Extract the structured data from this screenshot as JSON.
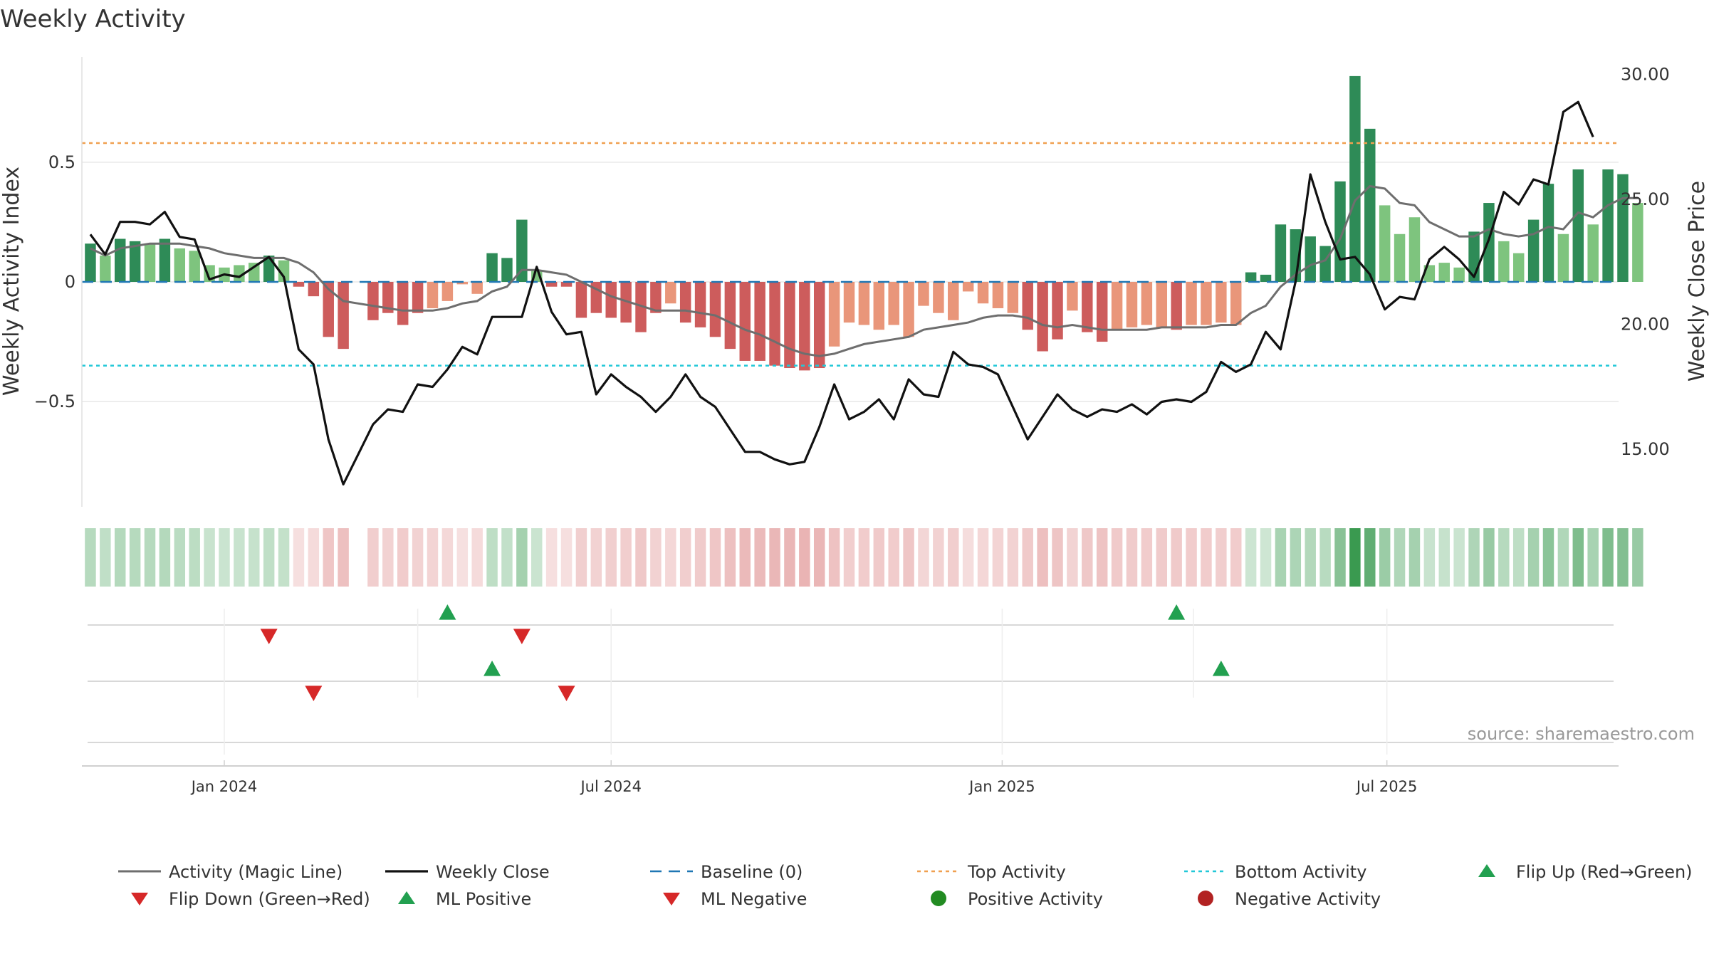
{
  "chart_data": {
    "type": "bar",
    "title": "Weekly Activity",
    "ylabel_left": "Weekly Activity Index",
    "ylabel_right": "Weekly Close Price",
    "source": "source: sharemaestro.com",
    "ylim_left": [
      -0.94,
      0.94
    ],
    "yticks_left": [
      {
        "v": 0.5,
        "label": "0.5"
      },
      {
        "v": 0,
        "label": "0"
      },
      {
        "v": -0.5,
        "label": "−0.5"
      }
    ],
    "ylim_right": [
      12.7,
      30.7
    ],
    "yticks_right": [
      {
        "v": 30,
        "label": "30.00"
      },
      {
        "v": 25,
        "label": "25.00"
      },
      {
        "v": 20,
        "label": "20.00"
      },
      {
        "v": 15,
        "label": "15.00"
      }
    ],
    "xlim": [
      "2023-10-26",
      "2025-10-18"
    ],
    "xticks": [
      {
        "date": "2024-01-01",
        "label": "Jan 2024"
      },
      {
        "date": "2024-07-01",
        "label": "Jul 2024"
      },
      {
        "date": "2025-01-01",
        "label": "Jan 2025"
      },
      {
        "date": "2025-07-01",
        "label": "Jul 2025"
      }
    ],
    "start_week": "2023-10-30",
    "activity": [
      0.16,
      0.11,
      0.18,
      0.17,
      0.16,
      0.18,
      0.14,
      0.13,
      0.07,
      0.06,
      0.07,
      0.08,
      0.11,
      0.09,
      -0.02,
      -0.06,
      -0.23,
      -0.28,
      null,
      -0.16,
      -0.13,
      -0.18,
      -0.13,
      -0.11,
      -0.08,
      -0.01,
      -0.05,
      0.12,
      0.1,
      0.26,
      0.05,
      -0.02,
      -0.02,
      -0.15,
      -0.13,
      -0.15,
      -0.17,
      -0.21,
      -0.13,
      -0.09,
      -0.17,
      -0.19,
      -0.23,
      -0.28,
      -0.33,
      -0.33,
      -0.35,
      -0.36,
      -0.37,
      -0.36,
      -0.27,
      -0.17,
      -0.18,
      -0.2,
      -0.18,
      -0.23,
      -0.1,
      -0.13,
      -0.16,
      -0.04,
      -0.09,
      -0.11,
      -0.13,
      -0.2,
      -0.29,
      -0.24,
      -0.12,
      -0.21,
      -0.25,
      -0.2,
      -0.19,
      -0.18,
      -0.19,
      -0.2,
      -0.18,
      -0.18,
      -0.17,
      -0.18,
      0.04,
      0.03,
      0.24,
      0.22,
      0.19,
      0.15,
      0.42,
      0.86,
      0.64,
      0.32,
      0.2,
      0.27,
      0.07,
      0.08,
      0.06,
      0.21,
      0.33,
      0.17,
      0.12,
      0.26,
      0.41,
      0.2,
      0.47,
      0.24,
      0.47,
      0.45,
      0.33
    ],
    "magic_line": [
      0.14,
      0.11,
      0.14,
      0.15,
      0.16,
      0.16,
      0.16,
      0.15,
      0.14,
      0.12,
      0.11,
      0.1,
      0.1,
      0.1,
      0.08,
      0.04,
      -0.03,
      -0.08,
      -0.09,
      -0.1,
      -0.11,
      -0.12,
      -0.12,
      -0.12,
      -0.11,
      -0.09,
      -0.08,
      -0.04,
      -0.02,
      0.05,
      0.05,
      0.04,
      0.03,
      0,
      -0.03,
      -0.06,
      -0.08,
      -0.1,
      -0.12,
      -0.12,
      -0.12,
      -0.13,
      -0.14,
      -0.17,
      -0.2,
      -0.22,
      -0.25,
      -0.28,
      -0.3,
      -0.31,
      -0.3,
      -0.28,
      -0.26,
      -0.25,
      -0.24,
      -0.23,
      -0.2,
      -0.19,
      -0.18,
      -0.17,
      -0.15,
      -0.14,
      -0.14,
      -0.15,
      -0.18,
      -0.19,
      -0.18,
      -0.19,
      -0.2,
      -0.2,
      -0.2,
      -0.2,
      -0.19,
      -0.19,
      -0.19,
      -0.19,
      -0.18,
      -0.18,
      -0.13,
      -0.1,
      -0.02,
      0.03,
      0.07,
      0.09,
      0.18,
      0.34,
      0.4,
      0.39,
      0.33,
      0.32,
      0.25,
      0.22,
      0.19,
      0.19,
      0.22,
      0.2,
      0.19,
      0.2,
      0.23,
      0.22,
      0.29,
      0.27,
      0.32,
      0.35,
      0.35
    ],
    "weekly_close": [
      23.6,
      22.8,
      24.1,
      24.1,
      24,
      24.5,
      23.5,
      23.4,
      21.8,
      22,
      21.9,
      22.3,
      22.7,
      21.9,
      19,
      18.4,
      15.4,
      13.6,
      14.8,
      16,
      16.6,
      16.5,
      17.6,
      17.5,
      18.2,
      19.1,
      18.8,
      20.3,
      20.3,
      20.3,
      22.3,
      20.5,
      19.6,
      19.7,
      17.2,
      18,
      17.5,
      17.1,
      16.5,
      17.1,
      18,
      17.1,
      16.7,
      15.8,
      14.9,
      14.9,
      14.6,
      14.4,
      14.5,
      15.9,
      17.6,
      16.2,
      16.5,
      17,
      16.2,
      17.8,
      17.2,
      17.1,
      18.9,
      18.4,
      18.3,
      18,
      16.7,
      15.4,
      16.3,
      17.2,
      16.6,
      16.3,
      16.6,
      16.5,
      16.8,
      16.4,
      16.9,
      17,
      16.9,
      17.3,
      18.5,
      18.1,
      18.4,
      19.7,
      19,
      21.7,
      26,
      24.1,
      22.6,
      22.7,
      22,
      20.6,
      21.1,
      21,
      22.6,
      23.1,
      22.6,
      21.9,
      23.4,
      25.3,
      24.8,
      25.8,
      25.6,
      28.5,
      28.9,
      27.5
    ],
    "top_activity": 0.58,
    "bottom_activity": -0.35,
    "baseline": 0,
    "flip_up": [
      "2024-04-15",
      "2025-03-24"
    ],
    "flip_down": [
      "2024-01-22",
      "2024-05-20"
    ],
    "ml_positive": [
      "2024-05-06",
      "2025-04-14"
    ],
    "ml_negative": [
      "2024-02-12",
      "2024-06-10"
    ],
    "legend": [
      {
        "key": "activity_magic_line",
        "label": "Activity (Magic Line)"
      },
      {
        "key": "weekly_close",
        "label": "Weekly Close"
      },
      {
        "key": "baseline",
        "label": "Baseline (0)"
      },
      {
        "key": "top_activity",
        "label": "Top Activity"
      },
      {
        "key": "bottom_activity",
        "label": "Bottom Activity"
      },
      {
        "key": "flip_up",
        "label": "Flip Up (Red→Green)"
      },
      {
        "key": "flip_down",
        "label": "Flip Down (Green→Red)"
      },
      {
        "key": "ml_positive",
        "label": "ML Positive"
      },
      {
        "key": "ml_negative",
        "label": "ML Negative"
      },
      {
        "key": "positive_activity",
        "label": "Positive Activity"
      },
      {
        "key": "negative_activity",
        "label": "Negative Activity"
      }
    ],
    "colors": {
      "green_dark": "#2e8b57",
      "green_light": "#7ec47e",
      "red_dark": "#cd5c5c",
      "red_light": "#e9967a",
      "magic_line": "#6e6e6e",
      "weekly_close": "#111111",
      "baseline": "#1f77b4",
      "top": "#f0a050",
      "bottom": "#22c8d8",
      "flip_up": "#22a050",
      "flip_down": "#d62828",
      "positive_dot": "#228b22",
      "negative_dot": "#b22222",
      "strip_green": "#3a9a50",
      "strip_red": "#d97a7a"
    }
  }
}
